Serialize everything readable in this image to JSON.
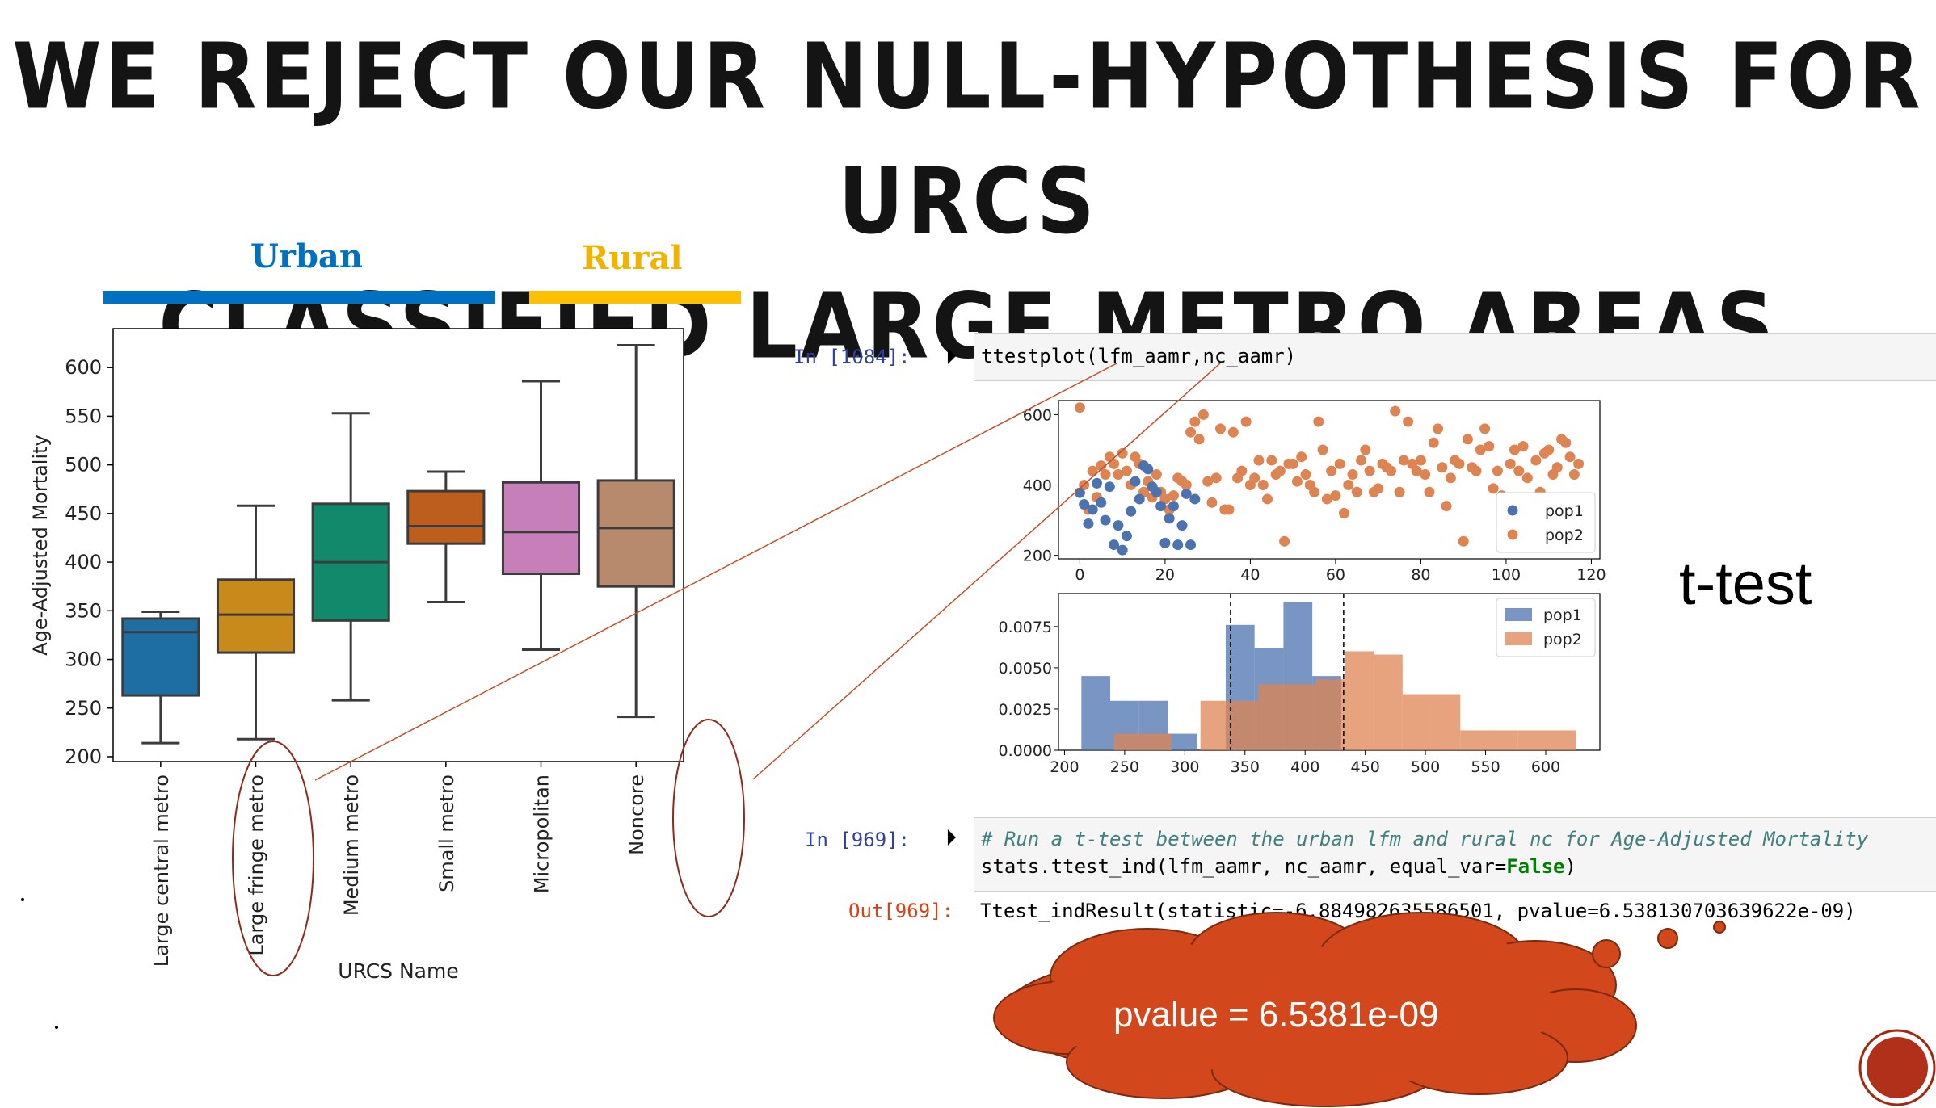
{
  "slide": {
    "title_line1": "WE REJECT OUR NULL-HYPOTHESIS FOR URCS",
    "title_line2": "CLASSIFIED LARGE METRO AREAS",
    "urban_label": "Urban",
    "rural_label": "Rural",
    "ttest_label": "t-test",
    "pvalue_callout": "pvalue = 6.5381e-09",
    "colors": {
      "urban": "#0070C0",
      "rural": "#FFC000",
      "cloud": "#D2481C",
      "circle": "#8B2A1E"
    }
  },
  "code": {
    "cell1_prompt": "In [1084]:",
    "cell1_code": "ttestplot(lfm_aamr,nc_aamr)",
    "cell2_prompt": "In [969]:",
    "cell2_comment": "# Run a t-test between the urban lfm and rural nc for Age-Adjusted Mortality",
    "cell2_code_a": "stats.ttest_ind",
    "cell2_code_b": "(lfm_aamr, nc_aamr, equal_var=",
    "cell2_code_c": "False",
    "cell2_code_d": ")",
    "out_prompt": "Out[969]:",
    "out_text": "Ttest_indResult(statistic=-6.884982635586501, pvalue=6.538130703639622e-09)"
  },
  "chart_data": [
    {
      "type": "boxplot",
      "xlabel": "URCS Name",
      "ylabel": "Age-Adjusted Mortality",
      "ylim": [
        195,
        640
      ],
      "yticks": [
        200,
        250,
        300,
        350,
        400,
        450,
        500,
        550,
        600
      ],
      "categories": [
        "Large central metro",
        "Large fringe metro",
        "Medium metro",
        "Small metro",
        "Micropolitan",
        "Noncore"
      ],
      "boxes": [
        {
          "min": 214,
          "q1": 263,
          "median": 328,
          "q3": 342,
          "max": 349,
          "color": "#1f6ea3"
        },
        {
          "min": 218,
          "q1": 307,
          "median": 346,
          "q3": 382,
          "max": 458,
          "color": "#c88a1b"
        },
        {
          "min": 258,
          "q1": 340,
          "median": 400,
          "q3": 460,
          "max": 553,
          "color": "#12896a"
        },
        {
          "min": 359,
          "q1": 419,
          "median": 437,
          "q3": 473,
          "max": 493,
          "color": "#bd5e1f"
        },
        {
          "min": 310,
          "q1": 388,
          "median": 431,
          "q3": 482,
          "max": 586,
          "color": "#c67fb8"
        },
        {
          "min": 241,
          "q1": 375,
          "median": 435,
          "q3": 484,
          "max": 623,
          "color": "#b88a6d"
        }
      ]
    },
    {
      "type": "scatter",
      "xlim": [
        -5,
        122
      ],
      "ylim": [
        190,
        640
      ],
      "xticks": [
        0,
        20,
        40,
        60,
        80,
        100,
        120
      ],
      "yticks": [
        200,
        400,
        600
      ],
      "legend_position": "lower-right",
      "series": [
        {
          "name": "pop1",
          "color": "#4c72b0",
          "points": [
            [
              0,
              378
            ],
            [
              1,
              345
            ],
            [
              2,
              290
            ],
            [
              3,
              330
            ],
            [
              4,
              405
            ],
            [
              5,
              350
            ],
            [
              6,
              300
            ],
            [
              7,
              395
            ],
            [
              8,
              230
            ],
            [
              9,
              285
            ],
            [
              10,
              215
            ],
            [
              11,
              255
            ],
            [
              12,
              325
            ],
            [
              13,
              410
            ],
            [
              14,
              360
            ],
            [
              15,
              455
            ],
            [
              16,
              445
            ],
            [
              17,
              395
            ],
            [
              18,
              380
            ],
            [
              19,
              340
            ],
            [
              20,
              235
            ],
            [
              21,
              305
            ],
            [
              22,
              340
            ],
            [
              23,
              230
            ],
            [
              24,
              285
            ],
            [
              25,
              375
            ],
            [
              26,
              230
            ],
            [
              27,
              360
            ]
          ]
        },
        {
          "name": "pop2",
          "color": "#dd8452",
          "points": [
            [
              0,
              620
            ],
            [
              1,
              400
            ],
            [
              2,
              330
            ],
            [
              3,
              440
            ],
            [
              4,
              365
            ],
            [
              5,
              455
            ],
            [
              6,
              430
            ],
            [
              7,
              480
            ],
            [
              8,
              460
            ],
            [
              9,
              430
            ],
            [
              10,
              490
            ],
            [
              11,
              440
            ],
            [
              12,
              400
            ],
            [
              13,
              480
            ],
            [
              14,
              460
            ],
            [
              15,
              380
            ],
            [
              16,
              410
            ],
            [
              17,
              365
            ],
            [
              18,
              430
            ],
            [
              19,
              380
            ],
            [
              20,
              360
            ],
            [
              21,
              330
            ],
            [
              22,
              370
            ],
            [
              23,
              420
            ],
            [
              24,
              410
            ],
            [
              25,
              400
            ],
            [
              26,
              550
            ],
            [
              27,
              580
            ],
            [
              28,
              530
            ],
            [
              29,
              600
            ],
            [
              30,
              410
            ],
            [
              31,
              350
            ],
            [
              32,
              420
            ],
            [
              33,
              560
            ],
            [
              34,
              330
            ],
            [
              35,
              330
            ],
            [
              36,
              550
            ],
            [
              37,
              420
            ],
            [
              38,
              440
            ],
            [
              39,
              580
            ],
            [
              40,
              400
            ],
            [
              41,
              420
            ],
            [
              42,
              470
            ],
            [
              43,
              400
            ],
            [
              44,
              360
            ],
            [
              45,
              470
            ],
            [
              46,
              430
            ],
            [
              47,
              440
            ],
            [
              48,
              240
            ],
            [
              49,
              460
            ],
            [
              50,
              460
            ],
            [
              51,
              410
            ],
            [
              52,
              480
            ],
            [
              53,
              430
            ],
            [
              54,
              400
            ],
            [
              55,
              380
            ],
            [
              56,
              580
            ],
            [
              57,
              500
            ],
            [
              58,
              360
            ],
            [
              59,
              440
            ],
            [
              60,
              370
            ],
            [
              61,
              460
            ],
            [
              62,
              320
            ],
            [
              63,
              400
            ],
            [
              64,
              430
            ],
            [
              65,
              380
            ],
            [
              66,
              470
            ],
            [
              67,
              500
            ],
            [
              68,
              440
            ],
            [
              69,
              380
            ],
            [
              70,
              390
            ],
            [
              71,
              460
            ],
            [
              72,
              450
            ],
            [
              73,
              440
            ],
            [
              74,
              610
            ],
            [
              75,
              380
            ],
            [
              76,
              470
            ],
            [
              77,
              580
            ],
            [
              78,
              460
            ],
            [
              79,
              440
            ],
            [
              80,
              470
            ],
            [
              81,
              430
            ],
            [
              82,
              380
            ],
            [
              83,
              520
            ],
            [
              84,
              560
            ],
            [
              85,
              450
            ],
            [
              86,
              340
            ],
            [
              87,
              420
            ],
            [
              88,
              470
            ],
            [
              89,
              460
            ],
            [
              90,
              240
            ],
            [
              91,
              530
            ],
            [
              92,
              450
            ],
            [
              93,
              440
            ],
            [
              94,
              500
            ],
            [
              95,
              560
            ],
            [
              96,
              510
            ],
            [
              97,
              390
            ],
            [
              98,
              440
            ],
            [
              99,
              370
            ],
            [
              100,
              330
            ],
            [
              101,
              460
            ],
            [
              102,
              500
            ],
            [
              103,
              440
            ],
            [
              104,
              510
            ],
            [
              105,
              420
            ],
            [
              106,
              270
            ],
            [
              107,
              470
            ],
            [
              108,
              380
            ],
            [
              109,
              490
            ],
            [
              110,
              500
            ],
            [
              111,
              430
            ],
            [
              112,
              450
            ],
            [
              113,
              530
            ],
            [
              114,
              520
            ],
            [
              115,
              480
            ],
            [
              116,
              430
            ],
            [
              117,
              460
            ]
          ]
        }
      ]
    },
    {
      "type": "histogram",
      "xlim": [
        195,
        645
      ],
      "ylim": [
        0,
        0.0095
      ],
      "xticks": [
        200,
        250,
        300,
        350,
        400,
        450,
        500,
        550,
        600
      ],
      "yticks": [
        0.0,
        0.0025,
        0.005,
        0.0075
      ],
      "ytick_labels": [
        "0.0000",
        "0.0025",
        "0.0050",
        "0.0075"
      ],
      "legend_position": "upper-right",
      "vlines": [
        338,
        432
      ],
      "series": [
        {
          "name": "pop1",
          "color": "#4c72b0",
          "bins": [
            [
              214,
              238,
              0.0045
            ],
            [
              238,
              262,
              0.003
            ],
            [
              262,
              286,
              0.003
            ],
            [
              286,
              310,
              0.001
            ],
            [
              310,
              334,
              0.0
            ],
            [
              334,
              358,
              0.0076
            ],
            [
              358,
              382,
              0.0062
            ],
            [
              382,
              406,
              0.009
            ],
            [
              406,
              430,
              0.0045
            ],
            [
              430,
              454,
              0.0
            ]
          ]
        },
        {
          "name": "pop2",
          "color": "#dd8452",
          "bins": [
            [
              241,
              265,
              0.001
            ],
            [
              265,
              289,
              0.001
            ],
            [
              289,
              313,
              0.0
            ],
            [
              313,
              337,
              0.003
            ],
            [
              337,
              361,
              0.003
            ],
            [
              361,
              385,
              0.004
            ],
            [
              385,
              409,
              0.004
            ],
            [
              409,
              433,
              0.0043
            ],
            [
              433,
              457,
              0.006
            ],
            [
              457,
              481,
              0.0058
            ],
            [
              481,
              505,
              0.0034
            ],
            [
              505,
              529,
              0.0034
            ],
            [
              529,
              553,
              0.0012
            ],
            [
              553,
              577,
              0.0012
            ],
            [
              577,
              601,
              0.0012
            ],
            [
              601,
              625,
              0.0012
            ]
          ]
        }
      ]
    }
  ]
}
